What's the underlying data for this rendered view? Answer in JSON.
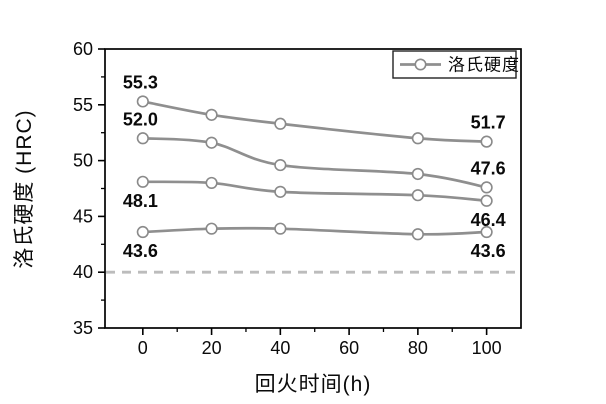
{
  "figure": {
    "background": "#ffffff"
  },
  "chart_data": {
    "type": "line",
    "title": "",
    "xlabel": "回火时间(h)",
    "ylabel": "洛氏硬度 (HRC)",
    "legend": {
      "label": "洛氏硬度",
      "position": "top-right",
      "border": true
    },
    "x": [
      0,
      20,
      40,
      80,
      100
    ],
    "xlim": [
      -11,
      110
    ],
    "ylim": [
      35,
      60
    ],
    "xticks": [
      0,
      20,
      40,
      60,
      80,
      100
    ],
    "yticks": [
      35,
      40,
      45,
      50,
      55,
      60
    ],
    "x_minor_ticks": [
      10,
      30,
      50,
      70,
      90
    ],
    "y_minor_ticks": [
      37.5,
      42.5,
      47.5,
      52.5,
      57.5
    ],
    "grid": false,
    "reference_line": {
      "y": 40,
      "style": "dashed",
      "color": "#bcbcbc"
    },
    "series": [
      {
        "values": [
          55.3,
          54.1,
          53.3,
          52.0,
          51.7
        ],
        "start_label": "55.3",
        "end_label": "51.7",
        "label_side": "above"
      },
      {
        "values": [
          52.0,
          51.6,
          49.6,
          48.8,
          47.6
        ],
        "start_label": "52.0",
        "end_label": "47.6",
        "label_side": "above"
      },
      {
        "values": [
          48.1,
          48.0,
          47.2,
          46.9,
          46.4
        ],
        "start_label": "48.1",
        "end_label": "46.4",
        "label_side": "below"
      },
      {
        "values": [
          43.6,
          43.9,
          43.9,
          43.4,
          43.6
        ],
        "start_label": "43.6",
        "end_label": "43.6",
        "label_side": "below"
      }
    ],
    "colors": {
      "line": "#8f8f8f",
      "marker_fill": "#ffffff",
      "marker_stroke": "#8a8a8a",
      "axis": "#000000",
      "point_label": "#0a0a0a",
      "reference": "#bcbcbc"
    }
  }
}
